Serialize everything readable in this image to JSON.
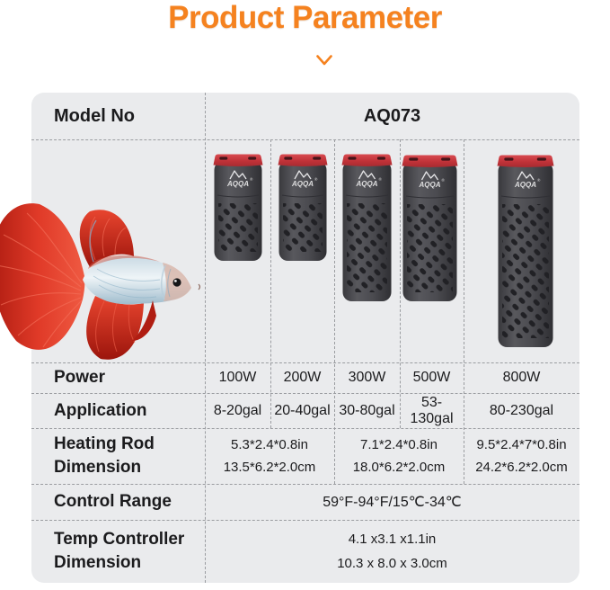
{
  "header": {
    "title": "Product Parameter"
  },
  "brand": {
    "name": "AQQA",
    "registered": "®"
  },
  "colors": {
    "accent_orange": "#f5821f",
    "panel_bg": "#eaebed",
    "dashed_line": "#9b9da1",
    "text": "#1b1b1d",
    "heater_body": "#48484c",
    "heater_cap_red": "#c63a40",
    "fish_red": "#d93428",
    "fish_body_silver": "#dfe8ee"
  },
  "table": {
    "model": {
      "label": "Model No",
      "value": "AQ073"
    },
    "power": {
      "label": "Power",
      "values": [
        "100W",
        "200W",
        "300W",
        "500W",
        "800W"
      ]
    },
    "application": {
      "label": "Application",
      "values": [
        "8-20gal",
        "20-40gal",
        "30-80gal",
        "53-130gal",
        "80-230gal"
      ]
    },
    "heating_rod": {
      "label_line1": "Heating Rod",
      "label_line2": "Dimension",
      "values": [
        {
          "inch": "5.3*2.4*0.8in",
          "cm": "13.5*6.2*2.0cm"
        },
        {
          "inch": "7.1*2.4*0.8in",
          "cm": "18.0*6.2*2.0cm"
        },
        {
          "inch": "9.5*2.4*7*0.8in",
          "cm": "24.2*6.2*2.0cm"
        }
      ]
    },
    "control_range": {
      "label": "Control Range",
      "value": "59°F-94°F/15℃-34℃"
    },
    "temp_controller": {
      "label_line1": "Temp Controller",
      "label_line2": "Dimension",
      "inch": "4.1 x3.1 x1.1in",
      "cm": "10.3 x 8.0 x 3.0cm"
    }
  }
}
